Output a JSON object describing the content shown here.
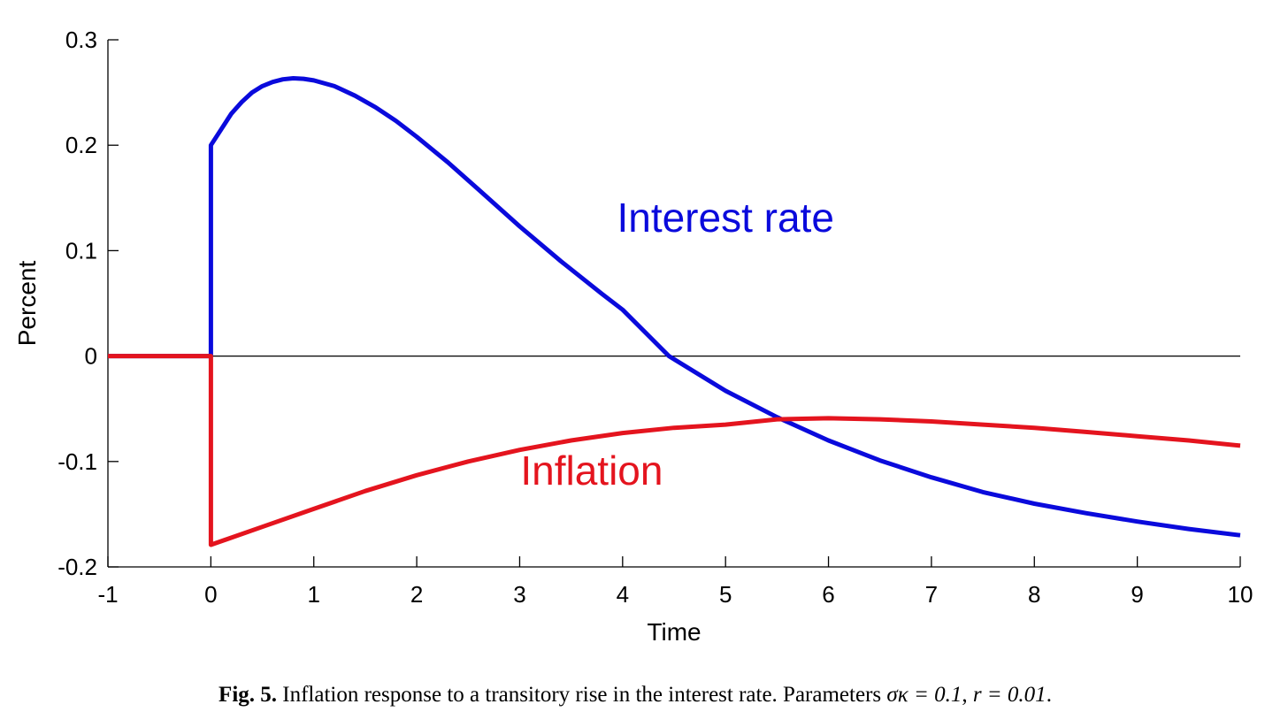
{
  "chart_data": {
    "type": "line",
    "title": "",
    "xlabel": "Time",
    "ylabel": "Percent",
    "xlim": [
      -1,
      10
    ],
    "ylim": [
      -0.2,
      0.3
    ],
    "xticks": [
      -1,
      0,
      1,
      2,
      3,
      4,
      5,
      6,
      7,
      8,
      9,
      10
    ],
    "xtick_labels": [
      "-1",
      "0",
      "1",
      "2",
      "3",
      "4",
      "5",
      "6",
      "7",
      "8",
      "9",
      "10"
    ],
    "yticks": [
      -0.2,
      -0.1,
      0,
      0.1,
      0.2,
      0.3
    ],
    "ytick_labels": [
      "-0.2",
      "-0.1",
      "0",
      "0.1",
      "0.2",
      "0.3"
    ],
    "zero_line": true,
    "grid": false,
    "series": [
      {
        "name": "Interest rate",
        "color": "#0a0adc",
        "x": [
          -1,
          0,
          0,
          0.1,
          0.2,
          0.3,
          0.4,
          0.5,
          0.6,
          0.7,
          0.8,
          0.9,
          1.0,
          1.2,
          1.4,
          1.6,
          1.8,
          2.0,
          2.3,
          2.6,
          3.0,
          3.4,
          3.8,
          4.0,
          4.45,
          5.0,
          5.5,
          6.0,
          6.5,
          7.0,
          7.5,
          8.0,
          8.5,
          9.0,
          9.5,
          10.0
        ],
        "y": [
          0,
          0,
          0.2,
          0.215,
          0.23,
          0.241,
          0.25,
          0.256,
          0.26,
          0.2625,
          0.2635,
          0.263,
          0.2615,
          0.256,
          0.247,
          0.236,
          0.223,
          0.208,
          0.184,
          0.158,
          0.123,
          0.09,
          0.059,
          0.044,
          0.0,
          -0.033,
          -0.058,
          -0.08,
          -0.099,
          -0.115,
          -0.129,
          -0.14,
          -0.149,
          -0.157,
          -0.164,
          -0.17
        ]
      },
      {
        "name": "Inflation",
        "color": "#e4141e",
        "x": [
          -1,
          0,
          0,
          0.5,
          1.0,
          1.5,
          2.0,
          2.5,
          3.0,
          3.5,
          4.0,
          4.5,
          5.0,
          5.5,
          6.0,
          6.5,
          7.0,
          7.5,
          8.0,
          8.5,
          9.0,
          9.5,
          10.0
        ],
        "y": [
          0,
          0,
          -0.179,
          -0.162,
          -0.145,
          -0.128,
          -0.113,
          -0.1,
          -0.089,
          -0.08,
          -0.073,
          -0.068,
          -0.065,
          -0.06,
          -0.059,
          -0.06,
          -0.062,
          -0.065,
          -0.068,
          -0.072,
          -0.076,
          -0.08,
          -0.085
        ]
      }
    ],
    "annotations": [
      {
        "text": "Interest rate",
        "x": 5.0,
        "y": 0.118,
        "color": "#0a0adc"
      },
      {
        "text": "Inflation",
        "x": 3.7,
        "y": -0.122,
        "color": "#e4141e"
      }
    ]
  },
  "caption": {
    "label": "Fig. 5.",
    "text": " Inflation response to a transitory rise in the interest rate. Parameters ",
    "param1": "σκ = 0.1",
    "separator": ", ",
    "param2": "r = 0.01",
    "end": "."
  }
}
